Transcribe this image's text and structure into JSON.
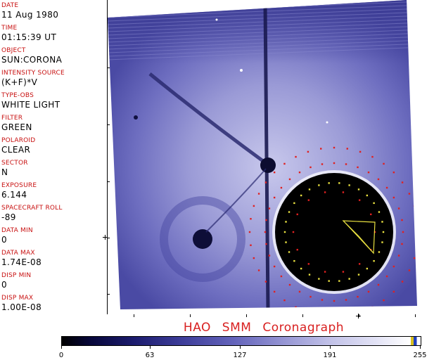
{
  "header_fields": [
    {
      "label": "DATE",
      "value": "11 Aug 1980"
    },
    {
      "label": "TIME",
      "value": "01:15:39 UT"
    },
    {
      "label": "OBJECT",
      "value": "SUN:CORONA"
    },
    {
      "label": "INTENSITY SOURCE",
      "value": "(K+F)*V"
    },
    {
      "label": "TYPE-OBS",
      "value": "WHITE LIGHT"
    },
    {
      "label": "FILTER",
      "value": "GREEN"
    },
    {
      "label": "POLAROID",
      "value": "CLEAR"
    },
    {
      "label": "SECTOR",
      "value": "N"
    },
    {
      "label": "EXPOSURE",
      "value": "6.144"
    },
    {
      "label": "SPACECRAFT ROLL",
      "value": "-89"
    },
    {
      "label": "DATA MIN",
      "value": "0"
    },
    {
      "label": "DATA MAX",
      "value": "1.74E-08"
    },
    {
      "label": "DISP MIN",
      "value": "0"
    },
    {
      "label": "DISP MAX",
      "value": "1.00E-08"
    }
  ],
  "title": "HAO SMM Coronagraph",
  "colorbar": {
    "ticks": [
      "0",
      "63",
      "127",
      "191",
      "255"
    ],
    "min": 0,
    "max": 255
  },
  "colors": {
    "label_red": "#c81010",
    "title_red": "#d82020",
    "corona_base": "#5a5ab0",
    "occulter_marker_red": "#e02020",
    "occulter_marker_yellow": "#e8e040"
  }
}
